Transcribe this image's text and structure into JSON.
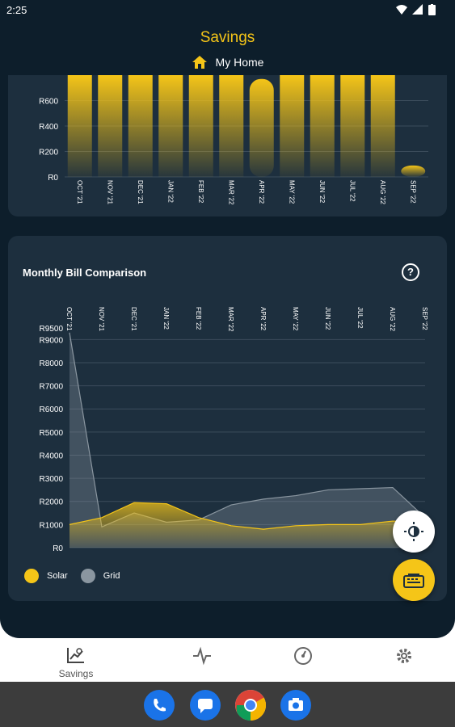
{
  "status": {
    "time": "2:25"
  },
  "header": {
    "title": "Savings",
    "home_label": "My Home"
  },
  "colors": {
    "accent": "#f5c518",
    "grid": "#8a96a0",
    "background": "#0d1e2b",
    "card": "#1d2f3e"
  },
  "top_chart": {
    "chart_data": {
      "type": "bar",
      "categories": [
        "OCT '21",
        "NOV '21",
        "DEC '21",
        "JAN '22",
        "FEB '22",
        "MAR '22",
        "APR '22",
        "MAY '22",
        "JUN '22",
        "JUL '22",
        "AUG '22",
        "SEP '22"
      ],
      "values": [
        800,
        800,
        800,
        800,
        800,
        800,
        770,
        800,
        800,
        800,
        800,
        90
      ],
      "y_ticks": [
        "R0",
        "R200",
        "R400",
        "R600"
      ],
      "ylim": [
        0,
        800
      ],
      "grid": true
    }
  },
  "bill_comparison": {
    "title": "Monthly Bill Comparison",
    "help_icon": "question-circle-icon",
    "chart_data": {
      "type": "area",
      "categories": [
        "OCT '21",
        "NOV '21",
        "DEC '21",
        "JAN '22",
        "FEB '22",
        "MAR '22",
        "APR '22",
        "MAY '22",
        "JUN '22",
        "JUL '22",
        "AUG '22",
        "SEP '22"
      ],
      "series": [
        {
          "name": "Solar",
          "color": "#f5c518",
          "values": [
            1000,
            1300,
            1950,
            1900,
            1300,
            950,
            800,
            950,
            1000,
            1000,
            1150,
            1100
          ]
        },
        {
          "name": "Grid",
          "color": "#8a96a0",
          "values": [
            9300,
            900,
            1500,
            1100,
            1200,
            1850,
            2100,
            2250,
            2500,
            2550,
            2600,
            1300
          ]
        }
      ],
      "y_ticks": [
        "R0",
        "R1000",
        "R2000",
        "R3000",
        "R4000",
        "R5000",
        "R6000",
        "R7000",
        "R8000",
        "R9000",
        "R9500"
      ],
      "ylim": [
        0,
        9500
      ],
      "grid": true,
      "legend": "bottom-left"
    }
  },
  "fabs": {
    "top_icon": "brightness-icon",
    "bottom_icon": "keyboard-icon"
  },
  "bottom_nav": {
    "items": [
      {
        "label": "Savings",
        "icon": "savings-chart-icon"
      },
      {
        "label": "",
        "icon": "pulse-icon"
      },
      {
        "label": "",
        "icon": "gauge-icon"
      },
      {
        "label": "",
        "icon": "gear-icon"
      }
    ]
  },
  "dock": {
    "apps": [
      "phone-icon",
      "messages-icon",
      "chrome-icon",
      "camera-icon"
    ]
  }
}
